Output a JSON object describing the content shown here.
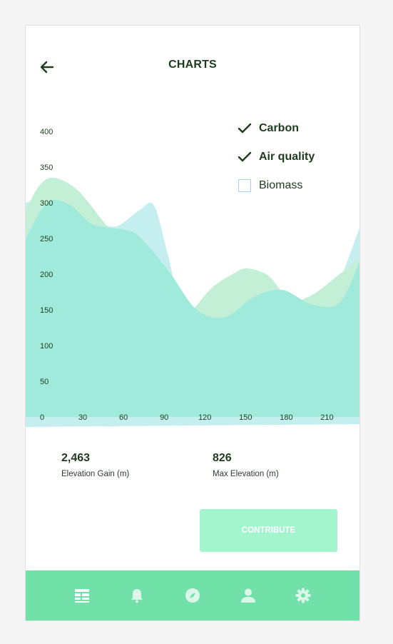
{
  "header": {
    "title": "CHARTS",
    "back_icon": "arrow-left-icon"
  },
  "legend": [
    {
      "label": "Carbon",
      "checked": true
    },
    {
      "label": "Air quality",
      "checked": true
    },
    {
      "label": "Biomass",
      "checked": false
    }
  ],
  "chart_data": {
    "type": "area",
    "x_ticks": [
      0,
      30,
      60,
      90,
      120,
      150,
      180,
      210
    ],
    "y_ticks": [
      50,
      100,
      150,
      200,
      250,
      300,
      350,
      400
    ],
    "xlim": [
      0,
      235
    ],
    "ylim": [
      0,
      400
    ],
    "series": [
      {
        "name": "",
        "color": "#c5efef",
        "x": [
          0,
          15,
          45,
          55,
          65,
          80,
          90,
          100,
          110,
          130,
          150,
          165,
          178,
          190,
          200,
          210,
          220,
          235
        ],
        "values": [
          300,
          305,
          285,
          270,
          268,
          290,
          296,
          225,
          150,
          125,
          150,
          165,
          172,
          162,
          155,
          150,
          190,
          270
        ]
      },
      {
        "name": "",
        "color": "#c2efd5",
        "x": [
          0,
          10,
          20,
          35,
          50,
          65,
          80,
          100,
          115,
          130,
          145,
          155,
          170,
          185,
          200,
          220,
          235
        ],
        "values": [
          290,
          325,
          335,
          320,
          285,
          240,
          155,
          120,
          145,
          180,
          200,
          208,
          198,
          165,
          170,
          200,
          223
        ]
      },
      {
        "name": "",
        "color": "#a0eadc",
        "x": [
          0,
          15,
          30,
          45,
          55,
          70,
          80,
          100,
          120,
          140,
          160,
          180,
          200,
          220,
          235
        ],
        "values": [
          250,
          300,
          298,
          272,
          266,
          262,
          252,
          205,
          150,
          140,
          168,
          178,
          158,
          160,
          222
        ]
      }
    ]
  },
  "stats": [
    {
      "value": "2,463",
      "label": "Elevation Gain (m)"
    },
    {
      "value": "826",
      "label": "Max Elevation (m)"
    }
  ],
  "contribute_label": "CONTRIBUTE",
  "nav": [
    "dashboard-icon",
    "bell-icon",
    "compass-icon",
    "user-icon",
    "gear-icon"
  ],
  "colors": {
    "nav_bg": "#72e0a9",
    "nav_icon": "#ffffff",
    "contribute_bg": "#a3f5ce",
    "text_dark": "#1e3b1e"
  }
}
